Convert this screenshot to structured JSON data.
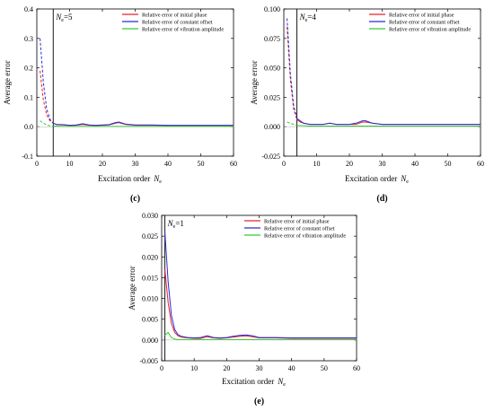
{
  "colors": {
    "phase": "#e8202a",
    "offset": "#2b2bd6",
    "amplitude": "#33cc33",
    "axis": "#000000"
  },
  "chart_data": [
    {
      "type": "line",
      "panel_label": "(c)",
      "xlabel": "Excitation order",
      "xlabel_symbol": "N",
      "xlabel_sub": "e",
      "ylabel": "Average error",
      "xlim": [
        0,
        60
      ],
      "ylim": [
        -0.1,
        0.4
      ],
      "xticks": [
        0,
        10,
        20,
        30,
        40,
        50,
        60
      ],
      "xtick_labels": [
        "0",
        "10",
        "20",
        "30",
        "40",
        "50",
        "60"
      ],
      "yticks": [
        -0.1,
        0.0,
        0.1,
        0.2,
        0.3,
        0.4
      ],
      "ytick_labels": [
        "-0.1",
        "0.0",
        "0.1",
        "0.2",
        "0.3",
        "0.4"
      ],
      "threshold_x": 5,
      "threshold_label": "=5",
      "threshold_symbol": "N",
      "threshold_sub": "e",
      "legend": [
        "Relative error of initial phase",
        "Relative error of constant offset",
        "Relative error of vibration amplitude"
      ],
      "series": [
        {
          "name": "Relative error of initial phase",
          "x": [
            1,
            2,
            3,
            4,
            5,
            6,
            8,
            10,
            12,
            14,
            16,
            18,
            20,
            22,
            24,
            25,
            27,
            30,
            35,
            40,
            45,
            50,
            55,
            60
          ],
          "y": [
            0.19,
            0.09,
            0.04,
            0.02,
            0.012,
            0.007,
            0.006,
            0.004,
            0.005,
            0.008,
            0.005,
            0.004,
            0.005,
            0.006,
            0.012,
            0.014,
            0.008,
            0.005,
            0.005,
            0.004,
            0.004,
            0.004,
            0.004,
            0.004
          ]
        },
        {
          "name": "Relative error of constant offset",
          "x": [
            1,
            2,
            3,
            4,
            5,
            6,
            8,
            10,
            12,
            14,
            16,
            18,
            20,
            22,
            24,
            25,
            27,
            30,
            35,
            40,
            45,
            50,
            55,
            60
          ],
          "y": [
            0.3,
            0.15,
            0.06,
            0.025,
            0.012,
            0.008,
            0.007,
            0.005,
            0.006,
            0.01,
            0.006,
            0.005,
            0.006,
            0.007,
            0.014,
            0.016,
            0.009,
            0.006,
            0.006,
            0.005,
            0.005,
            0.005,
            0.005,
            0.005
          ]
        },
        {
          "name": "Relative error of vibration amplitude",
          "x": [
            1,
            2,
            3,
            4,
            5,
            8,
            10,
            20,
            30,
            40,
            50,
            60
          ],
          "y": [
            0.02,
            0.012,
            0.006,
            0.003,
            0.002,
            0.001,
            0.001,
            0.001,
            0.001,
            0.001,
            0.001,
            0.001
          ]
        }
      ]
    },
    {
      "type": "line",
      "panel_label": "(d)",
      "xlabel": "Excitation order",
      "xlabel_symbol": "N",
      "xlabel_sub": "e",
      "ylabel": "Average error",
      "xlim": [
        0,
        60
      ],
      "ylim": [
        -0.025,
        0.1
      ],
      "xticks": [
        0,
        10,
        20,
        30,
        40,
        50,
        60
      ],
      "xtick_labels": [
        "0",
        "10",
        "20",
        "30",
        "40",
        "50",
        "60"
      ],
      "yticks": [
        -0.025,
        0.0,
        0.025,
        0.05,
        0.075,
        0.1
      ],
      "ytick_labels": [
        "-0.025",
        "0.000",
        "0.025",
        "0.050",
        "0.075",
        "0.100"
      ],
      "threshold_x": 4,
      "threshold_label": "=4",
      "threshold_symbol": "N",
      "threshold_sub": "e",
      "legend": [
        "Relative error of initial phase",
        "Relative error of constant offset",
        "Relative error of vibration amplitude"
      ],
      "series": [
        {
          "name": "Relative error of initial phase",
          "x": [
            1,
            2,
            3,
            4,
            5,
            6,
            8,
            10,
            12,
            14,
            16,
            18,
            20,
            22,
            24,
            25,
            27,
            30,
            35,
            40,
            45,
            50,
            55,
            60
          ],
          "y": [
            0.085,
            0.04,
            0.015,
            0.006,
            0.004,
            0.003,
            0.002,
            0.002,
            0.002,
            0.003,
            0.002,
            0.002,
            0.002,
            0.002,
            0.004,
            0.004,
            0.003,
            0.002,
            0.002,
            0.002,
            0.002,
            0.002,
            0.002,
            0.002
          ]
        },
        {
          "name": "Relative error of constant offset",
          "x": [
            1,
            2,
            3,
            4,
            5,
            6,
            8,
            10,
            12,
            14,
            16,
            18,
            20,
            22,
            24,
            25,
            27,
            30,
            35,
            40,
            45,
            50,
            55,
            60
          ],
          "y": [
            0.092,
            0.045,
            0.018,
            0.007,
            0.005,
            0.003,
            0.002,
            0.002,
            0.002,
            0.003,
            0.002,
            0.002,
            0.002,
            0.003,
            0.005,
            0.005,
            0.003,
            0.002,
            0.002,
            0.002,
            0.002,
            0.002,
            0.002,
            0.002
          ]
        },
        {
          "name": "Relative error of vibration amplitude",
          "x": [
            1,
            2,
            3,
            4,
            5,
            8,
            10,
            20,
            30,
            40,
            50,
            60
          ],
          "y": [
            0.004,
            0.003,
            0.002,
            0.001,
            0.001,
            0.0005,
            0.0005,
            0.0005,
            0.0005,
            0.0005,
            0.0005,
            0.0005
          ]
        }
      ]
    },
    {
      "type": "line",
      "panel_label": "(e)",
      "xlabel": "Excitation order",
      "xlabel_symbol": "N",
      "xlabel_sub": "e",
      "ylabel": "Average error",
      "xlim": [
        0,
        60
      ],
      "ylim": [
        -0.005,
        0.03
      ],
      "xticks": [
        0,
        10,
        20,
        30,
        40,
        50,
        60
      ],
      "xtick_labels": [
        "0",
        "10",
        "20",
        "30",
        "40",
        "50",
        "60"
      ],
      "yticks": [
        -0.005,
        0.0,
        0.005,
        0.01,
        0.015,
        0.02,
        0.025,
        0.03
      ],
      "ytick_labels": [
        "-0.005",
        "0.000",
        "0.005",
        "0.010",
        "0.015",
        "0.020",
        "0.025",
        "0.030"
      ],
      "threshold_x": 1,
      "threshold_label": "=1",
      "threshold_symbol": "N",
      "threshold_sub": "e",
      "legend": [
        "Relative error of initial phase",
        "Relative error of constant offset",
        "Relative error of vibration amplitude"
      ],
      "series": [
        {
          "name": "Relative error of initial phase",
          "x": [
            1,
            2,
            3,
            4,
            5,
            6,
            8,
            10,
            12,
            14,
            16,
            18,
            20,
            22,
            24,
            26,
            28,
            30,
            35,
            40,
            45,
            50,
            55,
            60
          ],
          "y": [
            0.017,
            0.009,
            0.004,
            0.0018,
            0.001,
            0.0007,
            0.0005,
            0.0004,
            0.0004,
            0.0008,
            0.0005,
            0.0004,
            0.0005,
            0.0007,
            0.0009,
            0.001,
            0.0008,
            0.0005,
            0.0005,
            0.0004,
            0.0004,
            0.0004,
            0.0004,
            0.0004
          ]
        },
        {
          "name": "Relative error of constant offset",
          "x": [
            1,
            2,
            3,
            4,
            5,
            6,
            8,
            10,
            12,
            14,
            16,
            18,
            20,
            22,
            24,
            26,
            28,
            30,
            35,
            40,
            45,
            50,
            55,
            60
          ],
          "y": [
            0.026,
            0.014,
            0.006,
            0.0025,
            0.0013,
            0.0009,
            0.0006,
            0.0005,
            0.0006,
            0.001,
            0.0006,
            0.0005,
            0.0006,
            0.0009,
            0.0011,
            0.0012,
            0.001,
            0.0006,
            0.0006,
            0.0005,
            0.0005,
            0.0005,
            0.0005,
            0.0005
          ]
        },
        {
          "name": "Relative error of vibration amplitude",
          "x": [
            1,
            2,
            3,
            4,
            5,
            8,
            10,
            20,
            30,
            40,
            50,
            60
          ],
          "y": [
            0.0012,
            0.0018,
            0.0006,
            0.0002,
            0.0001,
            0.0001,
            0.0001,
            0.0001,
            0.0001,
            0.0001,
            0.0001,
            0.0001
          ]
        }
      ]
    }
  ]
}
